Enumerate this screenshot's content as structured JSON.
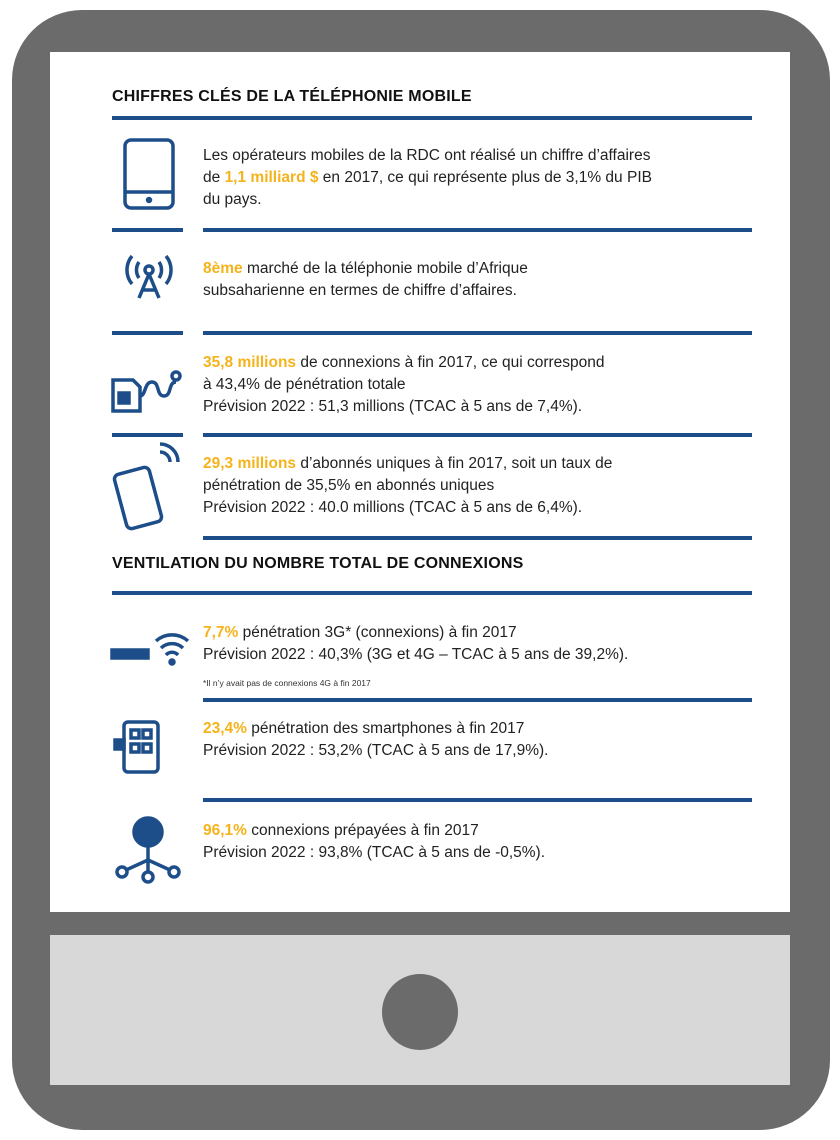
{
  "header": {
    "title": "CHIFFRES CLÉS DE LA TÉLÉPHONIE MOBILE"
  },
  "items": [
    {
      "lines": [
        [
          {
            "text": "Les opérateurs mobiles de la RDC ont réalisé un chiffre d’affaires"
          }
        ],
        [
          {
            "text": "de "
          },
          {
            "highlight": "1,1 milliard $"
          },
          {
            "text": " en 2017, ce qui représente plus de 3,1% du PIB"
          }
        ],
        [
          {
            "text": "du pays."
          }
        ]
      ]
    },
    {
      "lines": [
        [
          {
            "highlight": "8ème"
          },
          {
            "text": " marché de la téléphonie mobile d’Afrique"
          }
        ],
        [
          {
            "text": "subsaharienne en termes de chiffre d’affaires."
          }
        ]
      ]
    },
    {
      "lines": [
        [
          {
            "highlight": "35,8 millions"
          },
          {
            "text": " de connexions à fin 2017, ce qui correspond"
          }
        ],
        [
          {
            "text": "à 43,4% de pénétration totale"
          }
        ],
        [
          {
            "text": "Prévision 2022 : 51,3 millions (TCAC à 5 ans de 7,4%)."
          }
        ]
      ]
    },
    {
      "lines": [
        [
          {
            "highlight": "29,3 millions"
          },
          {
            "text": " d’abonnés uniques à fin 2017, soit un taux de"
          }
        ],
        [
          {
            "text": "pénétration de 35,5% en abonnés uniques"
          }
        ],
        [
          {
            "text": "Prévision 2022 : 40.0 millions (TCAC à 5 ans de 6,4%)."
          }
        ]
      ]
    }
  ],
  "section2": {
    "title": "VENTILATION DU NOMBRE TOTAL DE CONNEXIONS",
    "items": [
      {
        "lines": [
          [
            {
              "highlight": "7,7%"
            },
            {
              "text": " pénétration 3G* (connexions) à fin 2017"
            }
          ],
          [
            {
              "text": "Prévision 2022 : 40,3% (3G et 4G – TCAC à 5 ans de 39,2%)."
            }
          ]
        ],
        "note": "*Il n’y avait pas de connexions 4G à fin 2017"
      },
      {
        "lines": [
          [
            {
              "highlight": "23,4%"
            },
            {
              "text": " pénétration des smartphones à fin 2017"
            }
          ],
          [
            {
              "text": "Prévision 2022 : 53,2% (TCAC à 5 ans de 17,9%)."
            }
          ]
        ]
      },
      {
        "lines": [
          [
            {
              "highlight": "96,1%"
            },
            {
              "text": " connexions prépayées à fin 2017"
            }
          ],
          [
            {
              "text": "Prévision 2022 : 93,8% (TCAC à 5 ans de -0,5%)."
            }
          ]
        ]
      }
    ]
  }
}
